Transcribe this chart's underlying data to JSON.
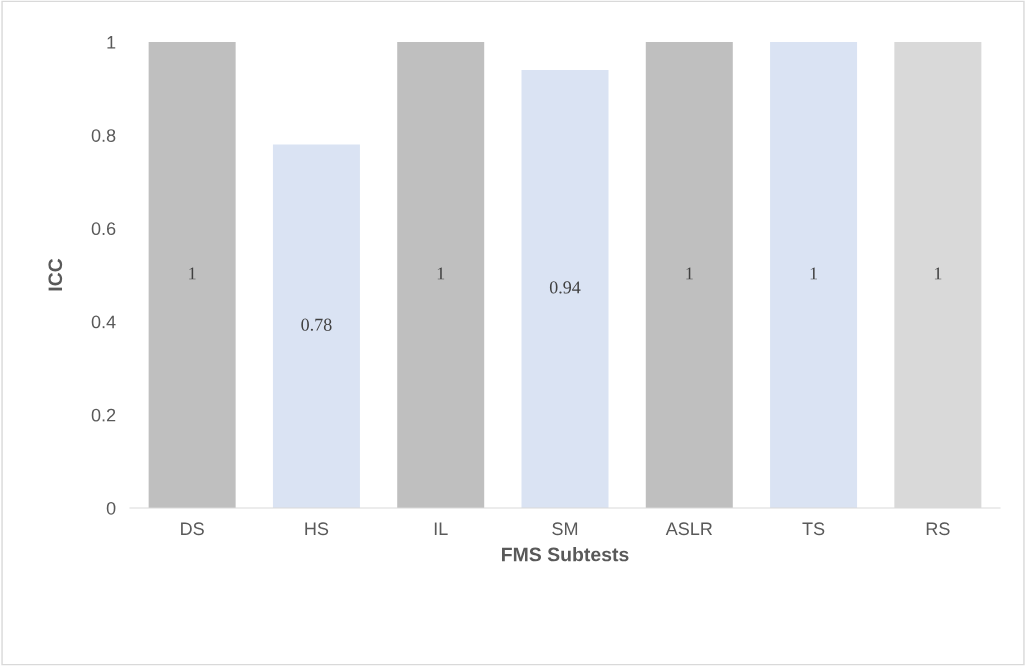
{
  "chart_data": {
    "type": "bar",
    "xlabel": "FMS Subtests",
    "ylabel": "ICC",
    "categories": [
      "DS",
      "HS",
      "IL",
      "SM",
      "ASLR",
      "TS",
      "RS"
    ],
    "values": [
      1,
      0.78,
      1,
      0.94,
      1,
      1,
      1
    ],
    "colors": [
      "#bfbfbf",
      "#dae3f3",
      "#bfbfbf",
      "#dae3f3",
      "#bfbfbf",
      "#dae3f3",
      "#d9d9d9"
    ],
    "ylim": [
      0,
      1
    ],
    "yticks": [
      0,
      0.2,
      0.4,
      0.6,
      0.8,
      1
    ],
    "grid": false,
    "data_labels": true
  }
}
